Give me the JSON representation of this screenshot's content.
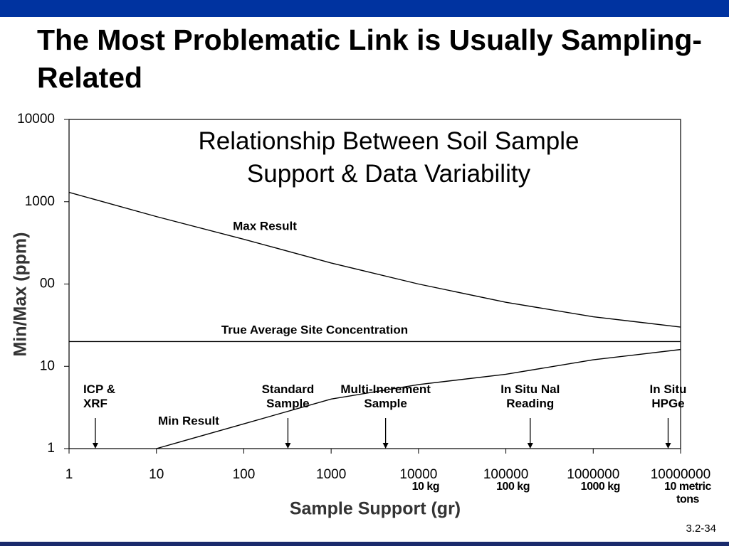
{
  "slide": {
    "title": "The Most Problematic Link is Usually Sampling-Related",
    "page_number": "3.2-34"
  },
  "chart_data": {
    "type": "line",
    "title": "Relationship Between Soil Sample Support & Data Variability",
    "xlabel": "Sample Support (gr)",
    "ylabel": "Min/Max (ppm)",
    "xscale": "log",
    "yscale": "log",
    "xlim": [
      1,
      10000000
    ],
    "ylim": [
      1,
      10000
    ],
    "xticks": [
      1,
      10,
      100,
      1000,
      10000,
      100000,
      1000000,
      10000000
    ],
    "yticks": [
      1,
      10,
      {
        "value": 100,
        "label": "00"
      },
      1000,
      10000
    ],
    "series": [
      {
        "name": "Max Result",
        "color": "#000000",
        "x": [
          1,
          10,
          100,
          1000,
          10000,
          100000,
          1000000,
          10000000
        ],
        "values": [
          1300,
          660,
          350,
          180,
          100,
          60,
          40,
          30
        ]
      },
      {
        "name": "True Average Site Concentration",
        "color": "#000000",
        "x": [
          1,
          10000000
        ],
        "values": [
          20,
          20
        ]
      },
      {
        "name": "Min Result",
        "color": "#000000",
        "x": [
          10,
          100,
          1000,
          10000,
          100000,
          1000000,
          10000000
        ],
        "values": [
          1,
          2,
          4,
          6,
          8,
          12,
          16
        ]
      }
    ],
    "annotations": [
      {
        "label": "ICP & XRF",
        "x": 2
      },
      {
        "label": "Standard Sample",
        "x": 320
      },
      {
        "label": "Multi-Increment Sample",
        "x": 4200
      },
      {
        "label": "In Situ NaI Reading",
        "x": 190000
      },
      {
        "label": "In Situ HPGe",
        "x": 7200000
      }
    ],
    "mass_labels": [
      {
        "label": "10 kg",
        "x": 10000
      },
      {
        "label": "100 kg",
        "x": 100000
      },
      {
        "label": "1000 kg",
        "x": 1000000
      },
      {
        "label": "10 metric tons",
        "x": 10000000
      }
    ]
  }
}
